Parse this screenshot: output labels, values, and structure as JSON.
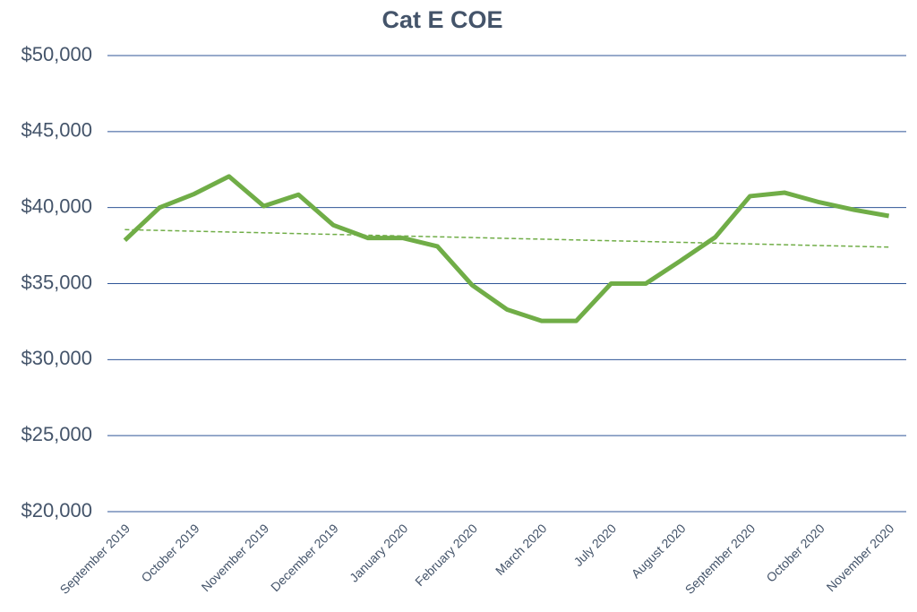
{
  "chart_data": {
    "type": "line",
    "title": "Cat E COE",
    "categories": [
      "September 2019",
      null,
      "October 2019",
      null,
      "November 2019",
      null,
      "December 2019",
      null,
      "January 2020",
      null,
      "February 2020",
      null,
      "March 2020",
      null,
      "July 2020",
      null,
      "August 2020",
      null,
      "September 2020",
      null,
      "October 2020",
      null,
      "November 2020"
    ],
    "series": [
      {
        "color": "#70ad47",
        "values": [
          37850,
          40000,
          40900,
          42050,
          40100,
          40850,
          38850,
          38000,
          38000,
          37450,
          34900,
          33300,
          32550,
          32550,
          35000,
          35000,
          36500,
          38050,
          40750,
          40980,
          40350,
          39850,
          39450
        ]
      }
    ],
    "trendline": {
      "start": 38550,
      "end": 37400,
      "color": "#70ad47",
      "dashed": true
    },
    "ylim": [
      20000,
      50000
    ],
    "yticks": [
      {
        "value": 20000,
        "label": "$20,000"
      },
      {
        "value": 25000,
        "label": "$25,000"
      },
      {
        "value": 30000,
        "label": "$30,000"
      },
      {
        "value": 35000,
        "label": "$35,000"
      },
      {
        "value": 40000,
        "label": "$40,000"
      },
      {
        "value": 45000,
        "label": "$45,000"
      },
      {
        "value": 50000,
        "label": "$50,000"
      }
    ],
    "grid": true,
    "grid_color": "#2f5597"
  }
}
